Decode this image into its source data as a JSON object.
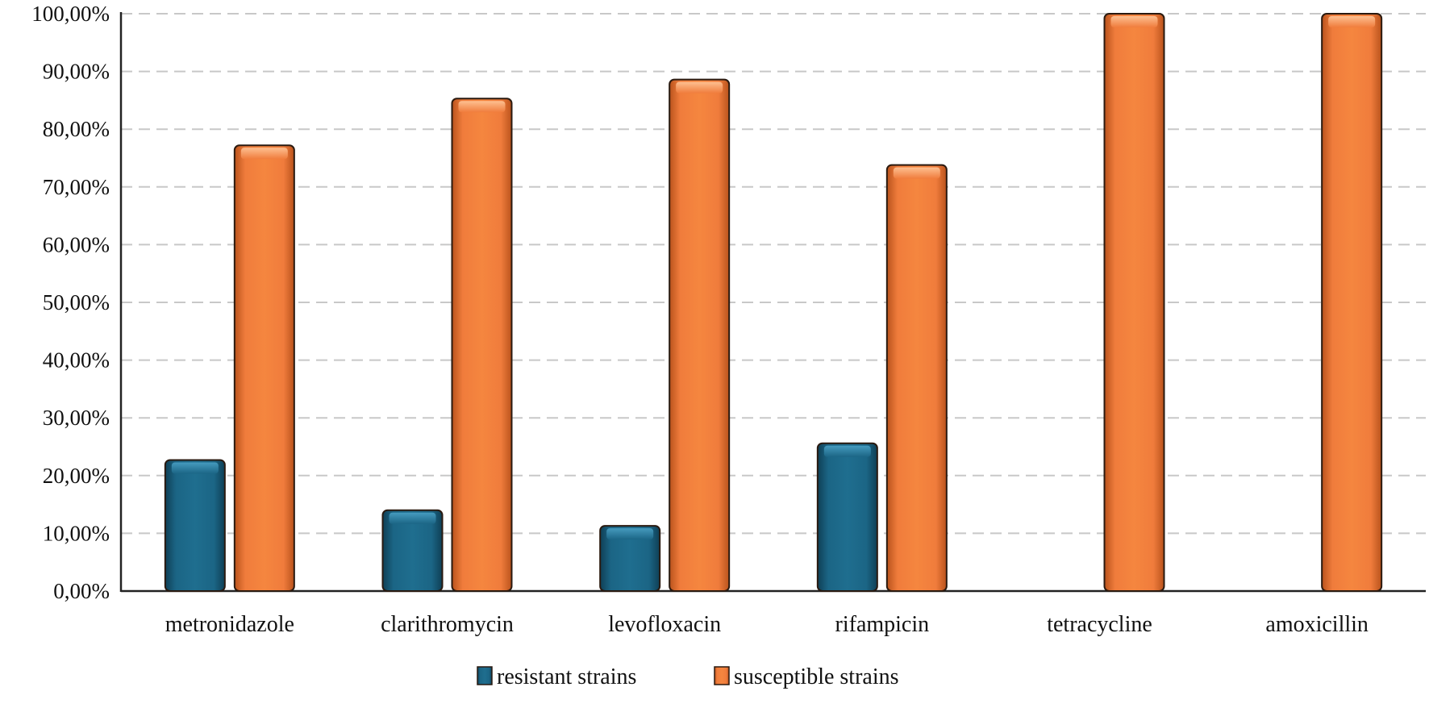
{
  "chart_data": {
    "type": "bar",
    "title": "",
    "xlabel": "",
    "ylabel": "",
    "categories": [
      "metronidazole",
      "clarithromycin",
      "levofloxacin",
      "rifampicin",
      "tetracycline",
      "amoxicillin"
    ],
    "series": [
      {
        "name": "resistant strains",
        "values": [
          22.7,
          14.0,
          11.3,
          25.6,
          0,
          0
        ],
        "color": "#1a5f7a"
      },
      {
        "name": "susceptible strains",
        "values": [
          77.2,
          85.3,
          88.6,
          73.8,
          100,
          100
        ],
        "color": "#f07c3c"
      }
    ],
    "ylim": [
      0,
      100
    ],
    "yticks": [
      "0,00%",
      "10,00%",
      "20,00%",
      "30,00%",
      "40,00%",
      "50,00%",
      "60,00%",
      "70,00%",
      "80,00%",
      "90,00%",
      "100,00%"
    ],
    "grid": true,
    "legend": "bottom-center"
  }
}
